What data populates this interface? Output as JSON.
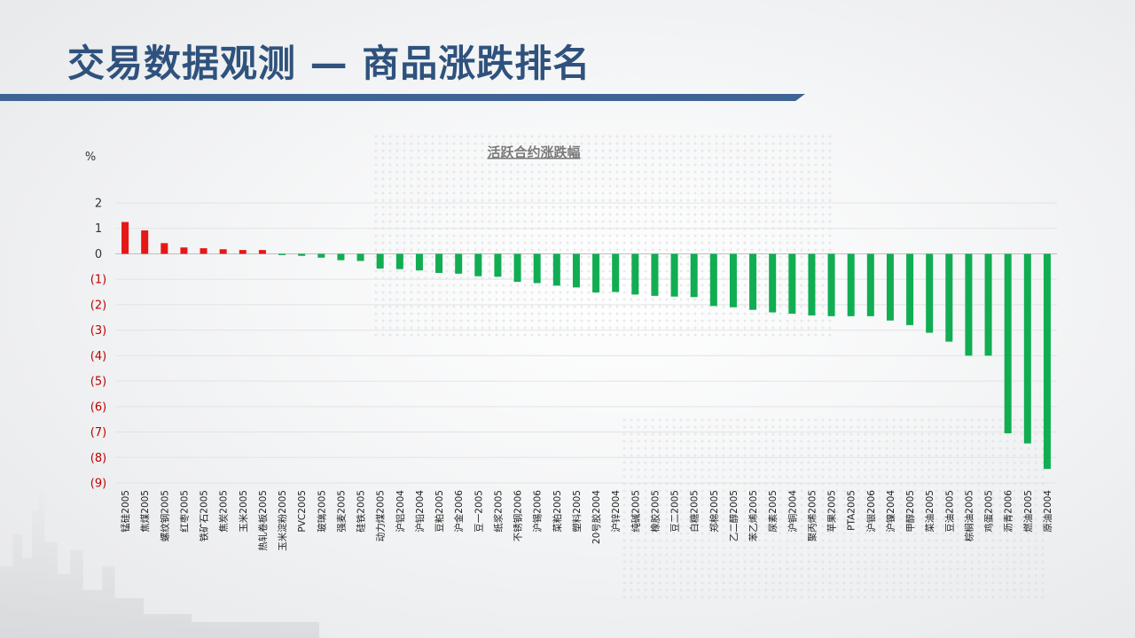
{
  "header": {
    "title": "交易数据观测 — 商品涨跌排名"
  },
  "colors": {
    "up": "#e61717",
    "down": "#11ad52",
    "negative_tick": "#c00000"
  },
  "chart_data": {
    "type": "bar",
    "title": "活跃合约涨跌幅",
    "ylabel": "%",
    "ylim": [
      -9,
      2
    ],
    "yticks": [
      2,
      1,
      0,
      -1,
      -2,
      -3,
      -4,
      -5,
      -6,
      -7,
      -8,
      -9
    ],
    "ytick_labels": [
      "2",
      "1",
      "0",
      "(1)",
      "(2)",
      "(3)",
      "(4)",
      "(5)",
      "(6)",
      "(7)",
      "(8)",
      "(9)"
    ],
    "grid": true,
    "categories": [
      "锰硅2005",
      "焦煤2005",
      "螺纹钢2005",
      "红枣2005",
      "铁矿石2005",
      "焦炭2005",
      "玉米2005",
      "热轧卷板2005",
      "玉米淀粉2005",
      "PVC2005",
      "玻璃2005",
      "强麦2005",
      "硅铁2005",
      "动力煤2005",
      "沪铝2004",
      "沪铅2004",
      "豆粕2005",
      "沪金2006",
      "豆一2005",
      "纸浆2005",
      "不锈钢2006",
      "沪锡2006",
      "菜粕2005",
      "塑料2005",
      "20号胶2004",
      "沪锌2004",
      "纯碱2005",
      "橡胶2005",
      "豆二2005",
      "白糖2005",
      "郑棉2005",
      "乙二醇2005",
      "苯乙烯2005",
      "尿素2005",
      "沪铜2004",
      "聚丙烯2005",
      "苹果2005",
      "PTA2005",
      "沪银2006",
      "沪镍2004",
      "甲醇2005",
      "菜油2005",
      "豆油2005",
      "棕榈油2005",
      "鸡蛋2005",
      "沥青2006",
      "燃油2005",
      "原油2004"
    ],
    "values": [
      1.25,
      0.92,
      0.42,
      0.25,
      0.22,
      0.18,
      0.15,
      0.15,
      -0.05,
      -0.08,
      -0.15,
      -0.25,
      -0.28,
      -0.58,
      -0.6,
      -0.65,
      -0.75,
      -0.78,
      -0.88,
      -0.9,
      -1.1,
      -1.15,
      -1.25,
      -1.32,
      -1.52,
      -1.5,
      -1.6,
      -1.65,
      -1.68,
      -1.7,
      -2.05,
      -2.1,
      -2.2,
      -2.3,
      -2.35,
      -2.42,
      -2.45,
      -2.45,
      -2.45,
      -2.62,
      -2.8,
      -3.1,
      -3.45,
      -4.0,
      -4.0,
      -7.05,
      -7.45,
      -8.45
    ]
  }
}
